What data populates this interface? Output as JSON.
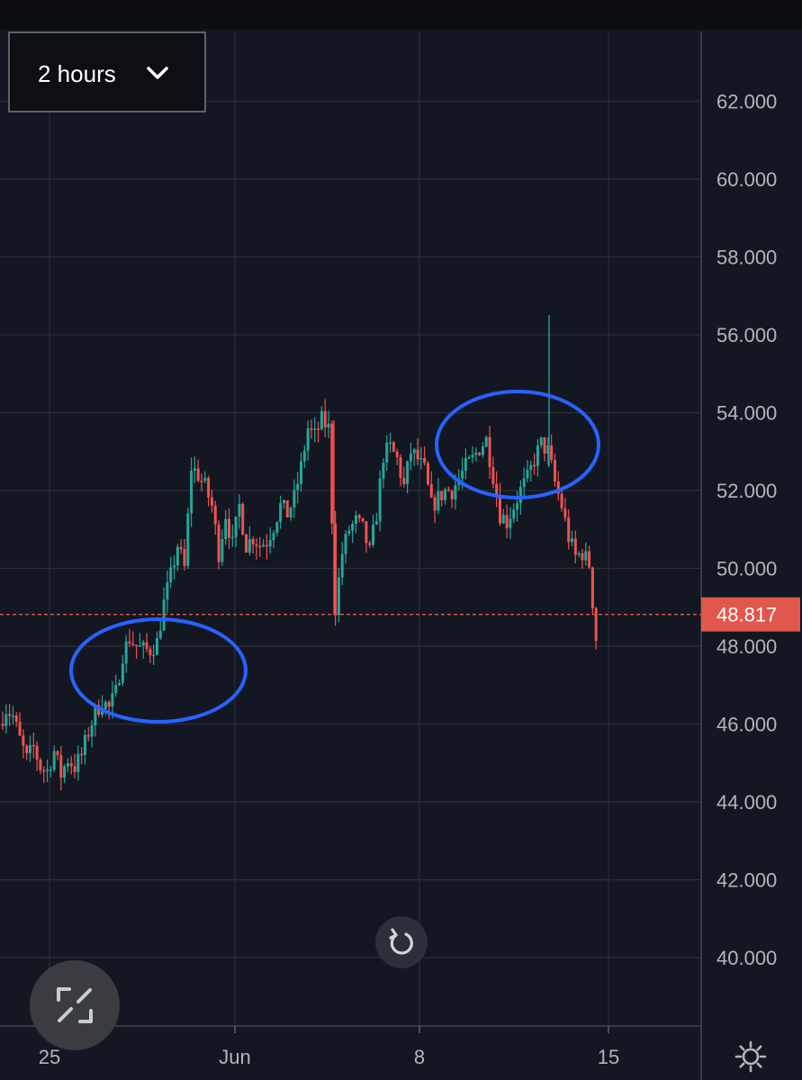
{
  "toolbar": {
    "interval_label": "2 hours"
  },
  "icons": {
    "interval_dropdown": "chevron-down-icon",
    "reset_chart": "rotate-ccw-icon",
    "fullscreen": "expand-icon",
    "settings": "gear-icon"
  },
  "colors": {
    "background": "#131722",
    "grid": "#2a2e39",
    "up": "#26a69a",
    "down": "#ef5350",
    "last_price_tag": "#e2574c",
    "annotation": "#2962ff",
    "axis_text": "#b2b5be"
  },
  "chart_data": {
    "type": "candlestick",
    "title": "",
    "xlabel": "",
    "ylabel": "",
    "x_ticks": [
      "25",
      "Jun",
      "8",
      "15"
    ],
    "y_ticks": [
      "40.000",
      "42.000",
      "44.000",
      "46.000",
      "48.000",
      "50.000",
      "52.000",
      "54.000",
      "56.000",
      "58.000",
      "60.000",
      "62.000"
    ],
    "ylim": [
      38.0,
      63.0
    ],
    "last_price": 48.817,
    "last_price_label": "48.817",
    "grid": true,
    "price_path": [
      46.0,
      46.4,
      46.2,
      45.6,
      45.1,
      45.4,
      44.9,
      44.8,
      45.3,
      44.7,
      45.1,
      44.9,
      45.2,
      45.8,
      46.3,
      46.6,
      46.4,
      46.8,
      47.8,
      48.2,
      48.0,
      47.9,
      47.9,
      48.1,
      49.1,
      49.8,
      50.6,
      50.0,
      52.6,
      52.4,
      52.1,
      51.6,
      50.4,
      51.4,
      50.6,
      51.6,
      50.6,
      50.8,
      50.6,
      50.7,
      51.1,
      51.6,
      51.4,
      51.8,
      52.6,
      53.6,
      53.4,
      53.8,
      53.6,
      49.0,
      50.4,
      51.0,
      51.2,
      51.0,
      50.4,
      51.4,
      52.9,
      53.1,
      52.8,
      52.1,
      53.0,
      52.8,
      52.5,
      51.6,
      51.8,
      52.0,
      52.0,
      52.3,
      52.6,
      52.8,
      53.1,
      53.3,
      52.4,
      51.4,
      51.2,
      51.6,
      52.0,
      52.3,
      52.8,
      53.2,
      53.0,
      52.2,
      51.6,
      50.8,
      50.3,
      50.4,
      50.1,
      48.2
    ],
    "annotations": [
      {
        "shape": "ellipse",
        "near": "48.000"
      },
      {
        "shape": "ellipse",
        "near": "53.000"
      }
    ]
  }
}
